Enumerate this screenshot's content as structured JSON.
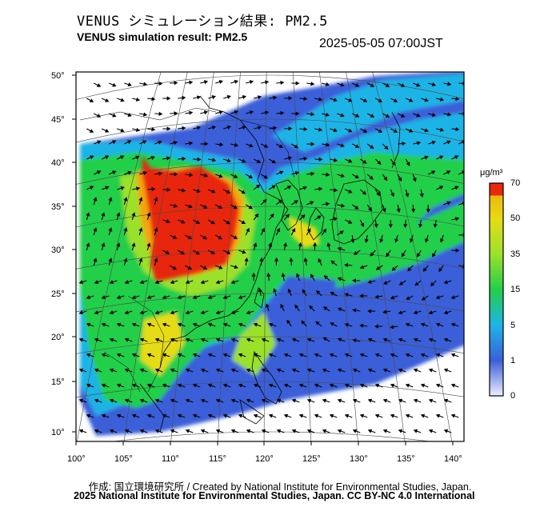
{
  "title_jp": "VENUS シミュレーション結果: PM2.5",
  "title_en": "VENUS simulation result: PM2.5",
  "datetime": "2025-05-05 07:00JST",
  "colorbar": {
    "unit": "μg/m³",
    "levels": [
      "70",
      "50",
      "35",
      "15",
      "5",
      "1",
      "0"
    ],
    "colors": [
      "#f0f0ff",
      "#3a5fd9",
      "#1eb4e6",
      "#22cf4a",
      "#9be12b",
      "#e6dc14",
      "#f2a50c",
      "#e8280c"
    ]
  },
  "axes": {
    "lat_labels": [
      "50°",
      "45°",
      "40°",
      "35°",
      "30°",
      "25°",
      "20°",
      "15°",
      "10°"
    ],
    "lon_labels": [
      "100°",
      "105°",
      "110°",
      "115°",
      "120°",
      "125°",
      "130°",
      "135°",
      "140°"
    ]
  },
  "credit_line": "作成: 国立環境研究所 / Created by National Institute for Environmental Studies, Japan.",
  "copyright_line": "2025 National Institute for Environmental Studies, Japan. CC BY-NC 4.0 International"
}
